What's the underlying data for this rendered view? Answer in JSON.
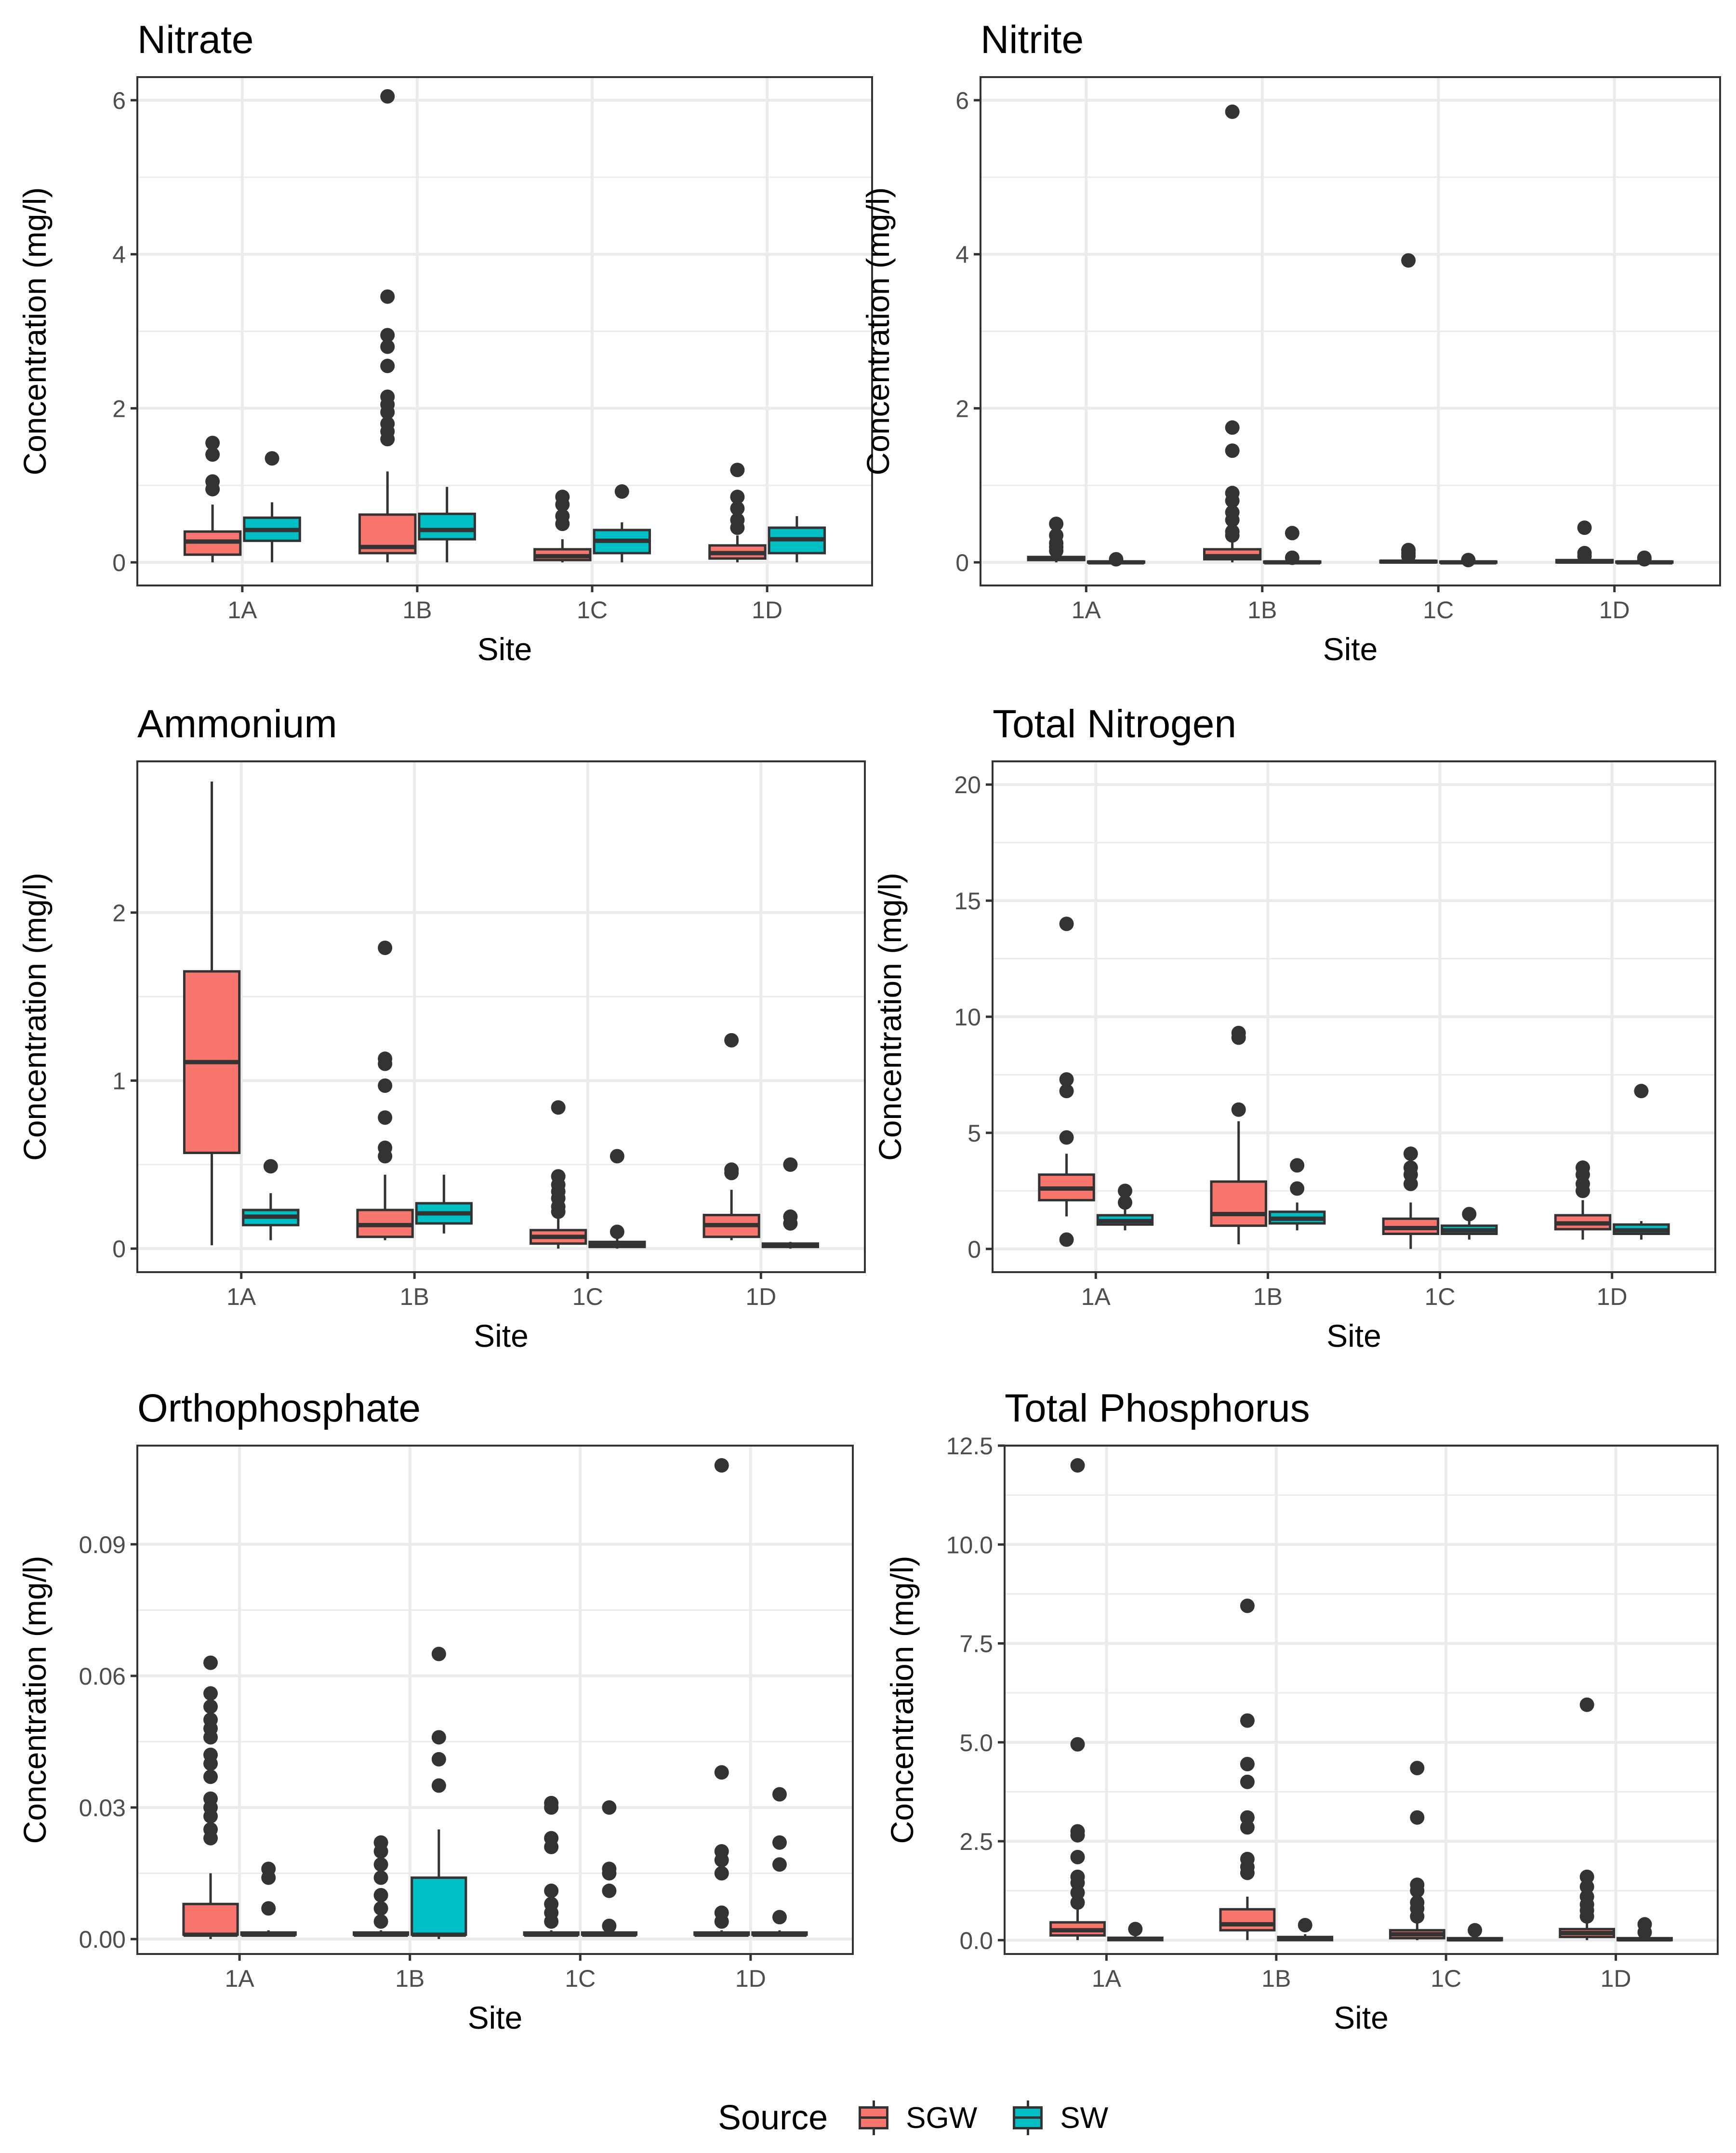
{
  "colors": {
    "SGW": "#F8766D",
    "SW": "#00BFC4",
    "outline": "#333333",
    "grid": "#EBEBEB"
  },
  "legend": {
    "title": "Source",
    "items": [
      {
        "key": "SGW",
        "label": "SGW"
      },
      {
        "key": "SW",
        "label": "SW"
      }
    ]
  },
  "chart_data": [
    {
      "type": "box",
      "title": "Nitrate",
      "xlabel": "Site",
      "ylabel": "Concentration (mg/l)",
      "ylim": [
        -0.3,
        6.3
      ],
      "yticks": [
        0,
        2,
        4,
        6
      ],
      "ytick_labels": [
        "0",
        "2",
        "4",
        "6"
      ],
      "categories": [
        "1A",
        "1B",
        "1C",
        "1D"
      ],
      "series": [
        {
          "name": "SGW",
          "boxes": [
            {
              "lo": 0.0,
              "q1": 0.1,
              "med": 0.27,
              "q3": 0.4,
              "hi": 0.75,
              "outliers": [
                0.95,
                1.05,
                1.4,
                1.55
              ]
            },
            {
              "lo": 0.0,
              "q1": 0.12,
              "med": 0.2,
              "q3": 0.62,
              "hi": 1.18,
              "outliers": [
                1.6,
                1.7,
                1.8,
                1.95,
                2.05,
                2.15,
                2.55,
                2.8,
                2.95,
                3.45,
                6.05
              ]
            },
            {
              "lo": 0.0,
              "q1": 0.03,
              "med": 0.08,
              "q3": 0.17,
              "hi": 0.3,
              "outliers": [
                0.5,
                0.6,
                0.75,
                0.85
              ]
            },
            {
              "lo": 0.0,
              "q1": 0.05,
              "med": 0.12,
              "q3": 0.22,
              "hi": 0.35,
              "outliers": [
                0.45,
                0.55,
                0.7,
                0.85,
                1.2
              ]
            }
          ]
        },
        {
          "name": "SW",
          "boxes": [
            {
              "lo": 0.0,
              "q1": 0.28,
              "med": 0.42,
              "q3": 0.58,
              "hi": 0.78,
              "outliers": [
                1.35
              ]
            },
            {
              "lo": 0.0,
              "q1": 0.3,
              "med": 0.42,
              "q3": 0.63,
              "hi": 0.98,
              "outliers": []
            },
            {
              "lo": 0.0,
              "q1": 0.12,
              "med": 0.28,
              "q3": 0.42,
              "hi": 0.52,
              "outliers": [
                0.92
              ]
            },
            {
              "lo": 0.0,
              "q1": 0.12,
              "med": 0.3,
              "q3": 0.45,
              "hi": 0.6,
              "outliers": []
            }
          ]
        }
      ]
    },
    {
      "type": "box",
      "title": "Nitrite",
      "xlabel": "Site",
      "ylabel": "Concentration (mg/l)",
      "ylim": [
        -0.3,
        6.3
      ],
      "yticks": [
        0,
        2,
        4,
        6
      ],
      "ytick_labels": [
        "0",
        "2",
        "4",
        "6"
      ],
      "categories": [
        "1A",
        "1B",
        "1C",
        "1D"
      ],
      "series": [
        {
          "name": "SGW",
          "boxes": [
            {
              "lo": 0.0,
              "q1": 0.03,
              "med": 0.05,
              "q3": 0.07,
              "hi": 0.12,
              "outliers": [
                0.15,
                0.2,
                0.25,
                0.35,
                0.5
              ]
            },
            {
              "lo": 0.0,
              "q1": 0.04,
              "med": 0.08,
              "q3": 0.17,
              "hi": 0.28,
              "outliers": [
                0.35,
                0.4,
                0.55,
                0.65,
                0.8,
                0.9,
                1.45,
                1.75,
                5.85
              ]
            },
            {
              "lo": 0.0,
              "q1": 0.0,
              "med": 0.01,
              "q3": 0.02,
              "hi": 0.04,
              "outliers": [
                0.08,
                0.12,
                0.16,
                3.92
              ]
            },
            {
              "lo": 0.0,
              "q1": 0.0,
              "med": 0.01,
              "q3": 0.03,
              "hi": 0.05,
              "outliers": [
                0.08,
                0.12,
                0.45
              ]
            }
          ]
        },
        {
          "name": "SW",
          "boxes": [
            {
              "lo": 0.0,
              "q1": 0.0,
              "med": 0.0,
              "q3": 0.01,
              "hi": 0.02,
              "outliers": [
                0.04
              ]
            },
            {
              "lo": 0.0,
              "q1": 0.0,
              "med": 0.0,
              "q3": 0.01,
              "hi": 0.02,
              "outliers": [
                0.06,
                0.38
              ]
            },
            {
              "lo": 0.0,
              "q1": 0.0,
              "med": 0.0,
              "q3": 0.01,
              "hi": 0.02,
              "outliers": [
                0.03
              ]
            },
            {
              "lo": 0.0,
              "q1": 0.0,
              "med": 0.0,
              "q3": 0.01,
              "hi": 0.02,
              "outliers": [
                0.04,
                0.06
              ]
            }
          ]
        }
      ]
    },
    {
      "type": "box",
      "title": "Ammonium",
      "xlabel": "Site",
      "ylabel": "Concentration (mg/l)",
      "ylim": [
        -0.14,
        2.9
      ],
      "yticks": [
        0,
        1,
        2
      ],
      "ytick_labels": [
        "0",
        "1",
        "2"
      ],
      "categories": [
        "1A",
        "1B",
        "1C",
        "1D"
      ],
      "series": [
        {
          "name": "SGW",
          "boxes": [
            {
              "lo": 0.02,
              "q1": 0.57,
              "med": 1.11,
              "q3": 1.65,
              "hi": 2.78,
              "outliers": []
            },
            {
              "lo": 0.05,
              "q1": 0.07,
              "med": 0.14,
              "q3": 0.23,
              "hi": 0.44,
              "outliers": [
                0.55,
                0.6,
                0.78,
                0.97,
                1.1,
                1.13,
                1.79
              ]
            },
            {
              "lo": 0.0,
              "q1": 0.03,
              "med": 0.07,
              "q3": 0.11,
              "hi": 0.2,
              "outliers": [
                0.22,
                0.25,
                0.3,
                0.34,
                0.38,
                0.43,
                0.84
              ]
            },
            {
              "lo": 0.05,
              "q1": 0.07,
              "med": 0.14,
              "q3": 0.2,
              "hi": 0.35,
              "outliers": [
                0.45,
                0.47,
                1.24
              ]
            }
          ]
        },
        {
          "name": "SW",
          "boxes": [
            {
              "lo": 0.05,
              "q1": 0.14,
              "med": 0.19,
              "q3": 0.23,
              "hi": 0.33,
              "outliers": [
                0.49
              ]
            },
            {
              "lo": 0.09,
              "q1": 0.15,
              "med": 0.21,
              "q3": 0.27,
              "hi": 0.44,
              "outliers": []
            },
            {
              "lo": 0.0,
              "q1": 0.01,
              "med": 0.02,
              "q3": 0.04,
              "hi": 0.06,
              "outliers": [
                0.1,
                0.55
              ]
            },
            {
              "lo": 0.0,
              "q1": 0.01,
              "med": 0.02,
              "q3": 0.03,
              "hi": 0.04,
              "outliers": [
                0.15,
                0.19,
                0.5
              ]
            }
          ]
        }
      ]
    },
    {
      "type": "box",
      "title": "Total Nitrogen",
      "xlabel": "Site",
      "ylabel": "Concentration (mg/l)",
      "ylim": [
        -1,
        21
      ],
      "yticks": [
        0,
        5,
        10,
        15,
        20
      ],
      "ytick_labels": [
        "0",
        "5",
        "10",
        "15",
        "20"
      ],
      "categories": [
        "1A",
        "1B",
        "1C",
        "1D"
      ],
      "series": [
        {
          "name": "SGW",
          "boxes": [
            {
              "lo": 1.4,
              "q1": 2.1,
              "med": 2.6,
              "q3": 3.2,
              "hi": 4.1,
              "outliers": [
                0.4,
                4.8,
                6.8,
                7.3,
                14.0
              ]
            },
            {
              "lo": 0.2,
              "q1": 1.0,
              "med": 1.5,
              "q3": 2.9,
              "hi": 5.5,
              "outliers": [
                6.0,
                9.1,
                9.3
              ]
            },
            {
              "lo": 0.0,
              "q1": 0.65,
              "med": 0.9,
              "q3": 1.3,
              "hi": 2.0,
              "outliers": [
                2.8,
                3.2,
                3.5,
                4.1
              ]
            },
            {
              "lo": 0.4,
              "q1": 0.85,
              "med": 1.1,
              "q3": 1.45,
              "hi": 2.1,
              "outliers": [
                2.5,
                2.8,
                3.2,
                3.5
              ]
            }
          ]
        },
        {
          "name": "SW",
          "boxes": [
            {
              "lo": 0.8,
              "q1": 1.05,
              "med": 1.2,
              "q3": 1.45,
              "hi": 1.8,
              "outliers": [
                2.0,
                2.5
              ]
            },
            {
              "lo": 0.8,
              "q1": 1.1,
              "med": 1.3,
              "q3": 1.6,
              "hi": 2.0,
              "outliers": [
                2.6,
                3.6
              ]
            },
            {
              "lo": 0.4,
              "q1": 0.65,
              "med": 0.8,
              "q3": 1.0,
              "hi": 1.3,
              "outliers": [
                1.5
              ]
            },
            {
              "lo": 0.4,
              "q1": 0.65,
              "med": 0.8,
              "q3": 1.05,
              "hi": 1.2,
              "outliers": [
                6.8
              ]
            }
          ]
        }
      ]
    },
    {
      "type": "box",
      "title": "Orthophosphate",
      "xlabel": "Site",
      "ylabel": "Concentration (mg/l)",
      "ylim": [
        -0.0034,
        0.1125
      ],
      "yticks": [
        0,
        0.03,
        0.06,
        0.09
      ],
      "ytick_labels": [
        "0.00",
        "0.03",
        "0.06",
        "0.09"
      ],
      "categories": [
        "1A",
        "1B",
        "1C",
        "1D"
      ],
      "series": [
        {
          "name": "SGW",
          "boxes": [
            {
              "lo": 0.0,
              "q1": 0.001,
              "med": 0.001,
              "q3": 0.008,
              "hi": 0.015,
              "outliers": [
                0.023,
                0.025,
                0.028,
                0.03,
                0.032,
                0.037,
                0.04,
                0.042,
                0.046,
                0.048,
                0.05,
                0.053,
                0.056,
                0.063
              ]
            },
            {
              "lo": 0.001,
              "q1": 0.001,
              "med": 0.001,
              "q3": 0.0015,
              "hi": 0.002,
              "outliers": [
                0.004,
                0.007,
                0.01,
                0.014,
                0.017,
                0.02,
                0.022
              ]
            },
            {
              "lo": 0.001,
              "q1": 0.001,
              "med": 0.001,
              "q3": 0.0015,
              "hi": 0.002,
              "outliers": [
                0.004,
                0.006,
                0.008,
                0.011,
                0.021,
                0.023,
                0.03,
                0.031
              ]
            },
            {
              "lo": 0.001,
              "q1": 0.001,
              "med": 0.001,
              "q3": 0.0015,
              "hi": 0.002,
              "outliers": [
                0.004,
                0.006,
                0.015,
                0.018,
                0.02,
                0.038,
                0.108
              ]
            }
          ]
        },
        {
          "name": "SW",
          "boxes": [
            {
              "lo": 0.001,
              "q1": 0.001,
              "med": 0.001,
              "q3": 0.0015,
              "hi": 0.002,
              "outliers": [
                0.007,
                0.014,
                0.016
              ]
            },
            {
              "lo": 0.0,
              "q1": 0.001,
              "med": 0.001,
              "q3": 0.014,
              "hi": 0.025,
              "outliers": [
                0.035,
                0.041,
                0.046,
                0.065
              ]
            },
            {
              "lo": 0.001,
              "q1": 0.001,
              "med": 0.001,
              "q3": 0.0015,
              "hi": 0.002,
              "outliers": [
                0.003,
                0.011,
                0.015,
                0.016,
                0.03
              ]
            },
            {
              "lo": 0.001,
              "q1": 0.001,
              "med": 0.001,
              "q3": 0.0015,
              "hi": 0.002,
              "outliers": [
                0.005,
                0.017,
                0.022,
                0.033
              ]
            }
          ]
        }
      ]
    },
    {
      "type": "box",
      "title": "Total Phosphorus",
      "xlabel": "Site",
      "ylabel": "Concentration (mg/l)",
      "ylim": [
        -0.35,
        12.5
      ],
      "yticks": [
        0,
        2.5,
        5,
        7.5,
        10,
        12.5
      ],
      "ytick_labels": [
        "0.0",
        "2.5",
        "5.0",
        "7.5",
        "10.0",
        "12.5"
      ],
      "categories": [
        "1A",
        "1B",
        "1C",
        "1D"
      ],
      "series": [
        {
          "name": "SGW",
          "boxes": [
            {
              "lo": 0.0,
              "q1": 0.12,
              "med": 0.25,
              "q3": 0.45,
              "hi": 0.8,
              "outliers": [
                0.95,
                1.2,
                1.45,
                1.6,
                2.1,
                2.65,
                2.75,
                4.95,
                12.0
              ]
            },
            {
              "lo": 0.0,
              "q1": 0.25,
              "med": 0.4,
              "q3": 0.78,
              "hi": 1.1,
              "outliers": [
                1.7,
                1.85,
                2.05,
                2.85,
                3.1,
                4.0,
                4.45,
                5.55,
                8.45
              ]
            },
            {
              "lo": 0.0,
              "q1": 0.05,
              "med": 0.15,
              "q3": 0.25,
              "hi": 0.45,
              "outliers": [
                0.6,
                0.8,
                0.95,
                1.25,
                1.4,
                3.1,
                4.35
              ]
            },
            {
              "lo": 0.0,
              "q1": 0.08,
              "med": 0.18,
              "q3": 0.28,
              "hi": 0.45,
              "outliers": [
                0.6,
                0.75,
                0.9,
                1.1,
                1.35,
                1.6,
                5.95
              ]
            }
          ]
        },
        {
          "name": "SW",
          "boxes": [
            {
              "lo": 0.0,
              "q1": 0.0,
              "med": 0.03,
              "q3": 0.06,
              "hi": 0.12,
              "outliers": [
                0.28
              ]
            },
            {
              "lo": 0.0,
              "q1": 0.0,
              "med": 0.03,
              "q3": 0.08,
              "hi": 0.15,
              "outliers": [
                0.38
              ]
            },
            {
              "lo": 0.0,
              "q1": 0.0,
              "med": 0.02,
              "q3": 0.05,
              "hi": 0.1,
              "outliers": [
                0.25
              ]
            },
            {
              "lo": 0.0,
              "q1": 0.0,
              "med": 0.02,
              "q3": 0.05,
              "hi": 0.1,
              "outliers": [
                0.2,
                0.4
              ]
            }
          ]
        }
      ]
    }
  ]
}
